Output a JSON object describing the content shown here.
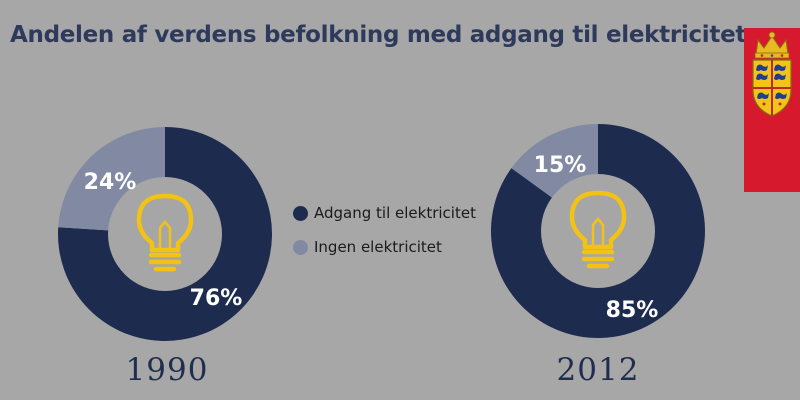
{
  "title": "Andelen af verdens befolkning med adgang til elektricitet",
  "colors": {
    "background": "#a7a7a7",
    "access": "#1d2b4e",
    "no_access": "#818aa2",
    "bulb": "#f2c215",
    "inner_circle": "#a6a6a6",
    "emblem_red": "#d7192e",
    "emblem_gold": "#e8b923"
  },
  "icons": [
    "lightbulb-icon",
    "danish-coat-of-arms-icon"
  ],
  "chart_data": [
    {
      "type": "pie",
      "title": "1990",
      "categories": [
        "Adgang til elektricitet",
        "Ingen elektricitet"
      ],
      "values": [
        76,
        24
      ],
      "value_labels": [
        "76%",
        "24%"
      ],
      "legend_position": "center"
    },
    {
      "type": "pie",
      "title": "2012",
      "categories": [
        "Adgang til elektricitet",
        "Ingen elektricitet"
      ],
      "values": [
        85,
        15
      ],
      "value_labels": [
        "85%",
        "15%"
      ],
      "legend_position": "center"
    }
  ],
  "legend": [
    {
      "label": "Adgang til elektricitet",
      "color": "#1d2b4e"
    },
    {
      "label": "Ingen elektricitet",
      "color": "#818aa2"
    }
  ]
}
